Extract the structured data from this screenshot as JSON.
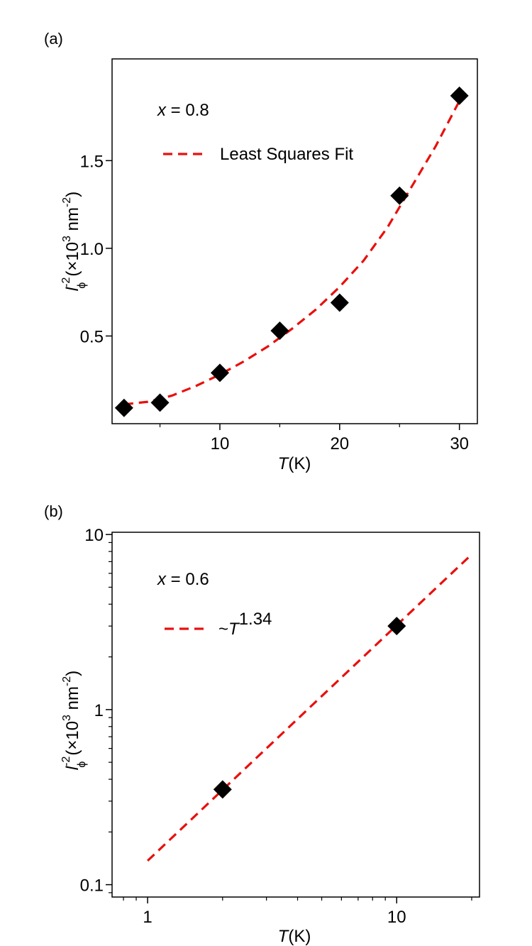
{
  "chart_data": [
    {
      "panel_label": "(a)",
      "type": "scatter",
      "x_scale": "linear",
      "y_scale": "linear",
      "xlim": [
        1,
        31.5
      ],
      "ylim": [
        0,
        2.08
      ],
      "xticks": [
        10,
        20,
        30
      ],
      "xtick_labels": [
        "10",
        "20",
        "30"
      ],
      "yticks": [
        0.5,
        1.0,
        1.5
      ],
      "ytick_labels": [
        "0.5",
        "1.0",
        "1.5"
      ],
      "xlabel": {
        "italic": "T",
        "rest": "(K)"
      },
      "ylabel": {
        "symbol": "l",
        "exponent": "-2",
        "subscript": "ϕ",
        "open": "(×10",
        "unit_exp": "3",
        "unit": " nm",
        "unit_exp2": "-2",
        "close": ")"
      },
      "annotation": {
        "var": "x",
        "text": " = 0.8"
      },
      "legend": {
        "label": "Least Squares Fit",
        "location": "top-left"
      },
      "series": [
        {
          "name": "data",
          "marker": "diamond",
          "color": "#000000",
          "x": [
            2,
            5,
            10,
            15,
            20,
            25,
            30
          ],
          "y": [
            0.09,
            0.12,
            0.29,
            0.53,
            0.69,
            1.3,
            1.87
          ]
        },
        {
          "name": "Least Squares Fit",
          "style": "dashed",
          "color": "#e8100c",
          "x": [
            2,
            4,
            6,
            8,
            10,
            12,
            14,
            16,
            18,
            20,
            22,
            24,
            26,
            28,
            30
          ],
          "y": [
            0.11,
            0.125,
            0.16,
            0.215,
            0.28,
            0.355,
            0.44,
            0.54,
            0.65,
            0.78,
            0.93,
            1.12,
            1.35,
            1.58,
            1.84
          ]
        }
      ]
    },
    {
      "panel_label": "(b)",
      "type": "scatter",
      "x_scale": "log",
      "y_scale": "log",
      "xlim": [
        0.72,
        21.5
      ],
      "ylim": [
        0.085,
        10.3
      ],
      "xticks": [
        1,
        10
      ],
      "xtick_labels": [
        "1",
        "10"
      ],
      "yticks": [
        0.1,
        1,
        10
      ],
      "ytick_labels": [
        "0.1",
        "1",
        "10"
      ],
      "xlabel": {
        "italic": "T",
        "rest": "(K)"
      },
      "ylabel": {
        "symbol": "l",
        "exponent": "-2",
        "subscript": "ϕ",
        "open": "(×10",
        "unit_exp": "3",
        "unit": " nm",
        "unit_exp2": "-2",
        "close": ")"
      },
      "annotation": {
        "var": "x",
        "text": " = 0.6"
      },
      "legend": {
        "prefix": "~",
        "var": "T",
        "exponent": "1.34",
        "location": "top-left"
      },
      "series": [
        {
          "name": "data",
          "marker": "diamond",
          "color": "#000000",
          "x": [
            2,
            10
          ],
          "y": [
            0.35,
            3.0
          ]
        },
        {
          "name": "~T^1.34",
          "style": "dashed",
          "color": "#e8100c",
          "x": [
            1,
            20
          ],
          "y": [
            0.137,
            7.7
          ]
        }
      ]
    }
  ]
}
